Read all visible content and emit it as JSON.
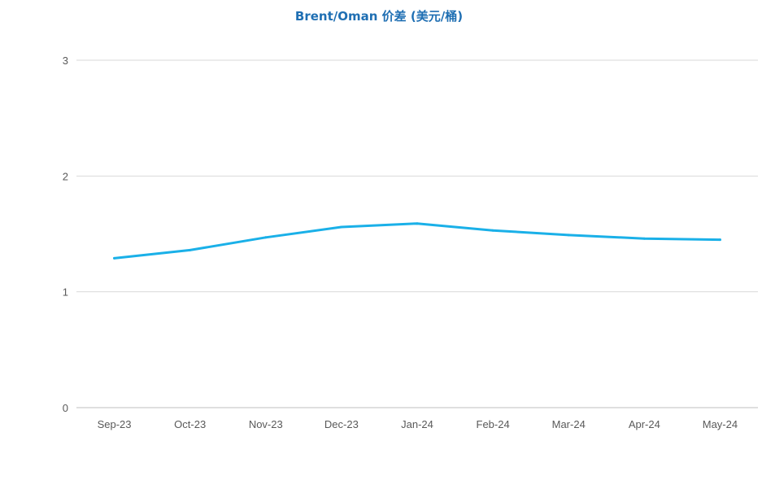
{
  "colors": {
    "title": "#1f6fb3",
    "line": "#1ab0e8",
    "grid": "#d9d9d9",
    "axis": "#bfbfbf",
    "tick": "#595959"
  },
  "chart_data": {
    "type": "line",
    "title": "Brent/Oman 价差 (美元/桶)",
    "xlabel": "",
    "ylabel": "",
    "categories": [
      "Sep-23",
      "Oct-23",
      "Nov-23",
      "Dec-23",
      "Jan-24",
      "Feb-24",
      "Mar-24",
      "Apr-24",
      "May-24"
    ],
    "series": [
      {
        "values": [
          1.29,
          1.36,
          1.47,
          1.56,
          1.59,
          1.53,
          1.49,
          1.46,
          1.45
        ]
      }
    ],
    "yticks": [
      "0",
      "1",
      "2",
      "3"
    ],
    "ylim": [
      0,
      3
    ],
    "grid": true,
    "legend": "none"
  }
}
